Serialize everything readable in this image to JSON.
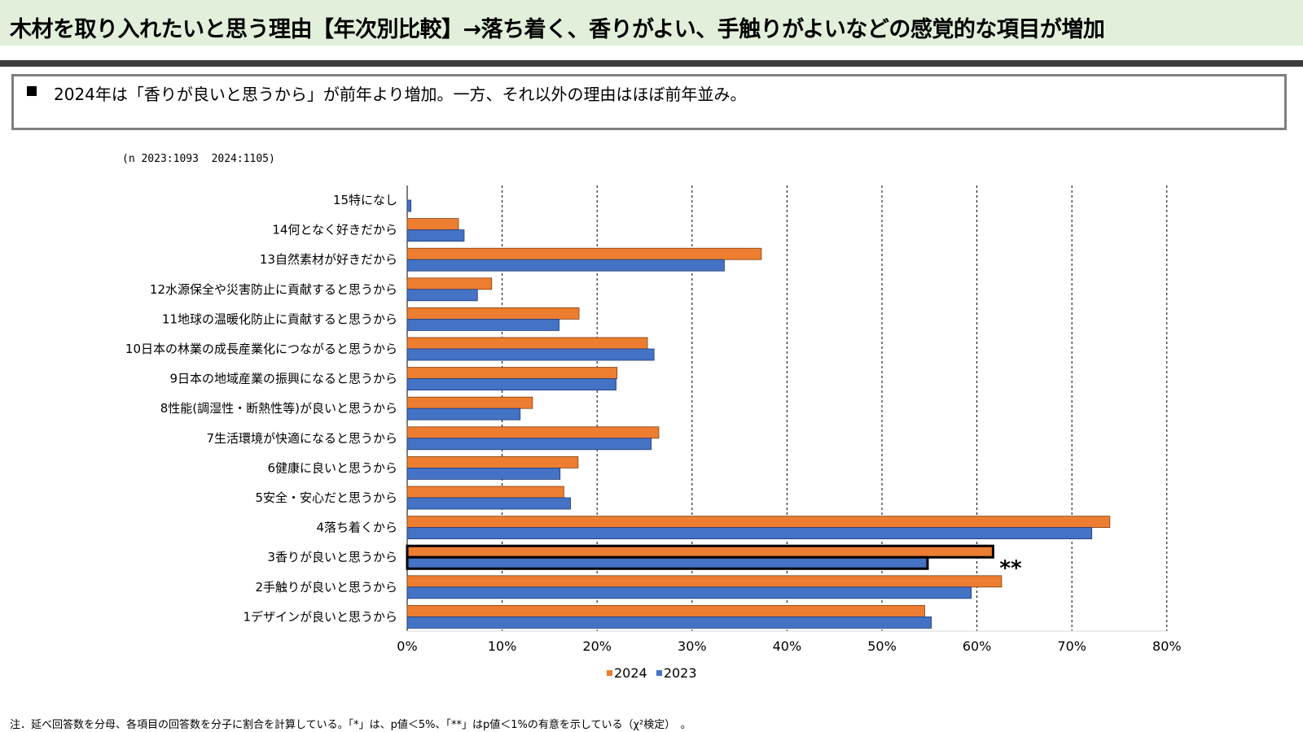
{
  "header": {
    "title": "木材を取り入れたいと思う理由【年次別比較】→落ち着く、香りがよい、手触りがよいなどの感覚的な項目が増加",
    "summary": "2024年は「香りが良いと思うから」が前年より増加。一方、それ以外の理由はほぼ前年並み。"
  },
  "sample_note": "(n 2023:1093  2024:1105)",
  "footnote": "注．延べ回答数を分母、各項目の回答数を分子に割合を計算している。「*」は、p値＜5%、「**」はp値＜1%の有意を示している（χ²検定）　。",
  "colors": {
    "series_2024": "#ed7d31",
    "series_2023": "#4472c4",
    "highlight_border": "#000000",
    "grid": "#000000"
  },
  "chart_data": {
    "type": "bar",
    "orientation": "horizontal",
    "categories": [
      "15特になし",
      "14何となく好きだから",
      "13自然素材が好きだから",
      "12水源保全や災害防止に貢献すると思うから",
      "11地球の温暖化防止に貢献すると思うから",
      "10日本の林業の成長産業化につながると思うから",
      "9日本の地域産業の振興になると思うから",
      "8性能(調湿性・断熱性等)が良いと思うから",
      "7生活環境が快適になると思うから",
      "6健康に良いと思うから",
      "5安全・安心だと思うから",
      "4落ち着くから",
      "3香りが良いと思うから",
      "2手触りが良いと思うから",
      "1デザインが良いと思うから"
    ],
    "series": [
      {
        "name": "2024",
        "values": [
          0.0,
          5.4,
          37.3,
          8.9,
          18.1,
          25.3,
          22.1,
          13.2,
          26.5,
          18.0,
          16.5,
          74.0,
          61.7,
          62.6,
          54.5
        ]
      },
      {
        "name": "2023",
        "values": [
          0.4,
          6.0,
          33.4,
          7.4,
          16.0,
          26.0,
          22.0,
          11.9,
          25.7,
          16.1,
          17.2,
          72.1,
          54.8,
          59.4,
          55.2
        ]
      }
    ],
    "xlim": [
      0,
      80
    ],
    "ticks": [
      "0%",
      "10%",
      "20%",
      "30%",
      "40%",
      "50%",
      "60%",
      "70%",
      "80%"
    ],
    "grid": "vertical dashed",
    "legend": [
      "2024",
      "2023"
    ],
    "legend_position": "bottom",
    "highlighted_category": "3香りが良いと思うから",
    "significance_label": "**"
  }
}
